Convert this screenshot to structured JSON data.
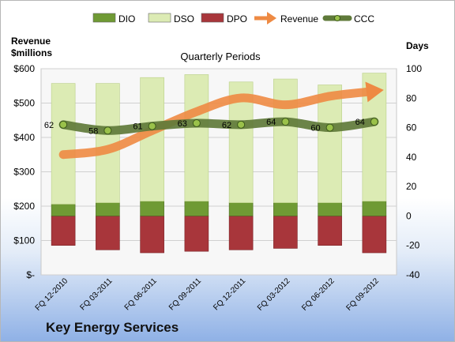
{
  "chart_data": {
    "type": "bar",
    "title": "Quarterly Periods",
    "company": "Key Energy Services",
    "left_axis": {
      "label_line1": "Revenue",
      "label_line2": "$millions",
      "min": 0,
      "max": 600,
      "step": 100,
      "ticks": [
        "$-",
        "$100",
        "$200",
        "$300",
        "$400",
        "$500",
        "$600"
      ]
    },
    "right_axis": {
      "label": "Days",
      "min": -40,
      "max": 100,
      "step": 20,
      "ticks": [
        "-40",
        "-20",
        "0",
        "20",
        "40",
        "60",
        "80",
        "100"
      ]
    },
    "categories": [
      "FQ 12-2010",
      "FQ 03-2011",
      "FQ 06-2011",
      "FQ 09-2011",
      "FQ 12-2011",
      "FQ 03-2012",
      "FQ 06-2012",
      "FQ 09-2012"
    ],
    "legend": [
      "DIO",
      "DSO",
      "DPO",
      "Revenue",
      "CCC"
    ],
    "series": [
      {
        "name": "DIO",
        "axis": "days",
        "kind": "stacked-bar",
        "color": "#6f9a34",
        "values": [
          8,
          9,
          10,
          10,
          9,
          9,
          9,
          10
        ]
      },
      {
        "name": "DSO",
        "axis": "days",
        "kind": "stacked-bar",
        "color": "#dcebb4",
        "values": [
          82,
          81,
          84,
          86,
          82,
          84,
          80,
          87
        ]
      },
      {
        "name": "DPO",
        "axis": "days",
        "kind": "negative-bar",
        "color": "#a8363b",
        "values": [
          -20,
          -23,
          -25,
          -24,
          -23,
          -22,
          -20,
          -25
        ]
      },
      {
        "name": "Revenue",
        "axis": "revenue",
        "kind": "line",
        "color": "#ee8a43",
        "values": [
          350,
          365,
          420,
          475,
          515,
          495,
          520,
          535
        ]
      },
      {
        "name": "CCC",
        "axis": "days",
        "kind": "line",
        "color": "#5f7a3a",
        "values": [
          62,
          58,
          61,
          63,
          62,
          64,
          60,
          64
        ],
        "labels": [
          "62",
          "58",
          "61",
          "63",
          "62",
          "64",
          "60",
          "64"
        ]
      }
    ]
  }
}
